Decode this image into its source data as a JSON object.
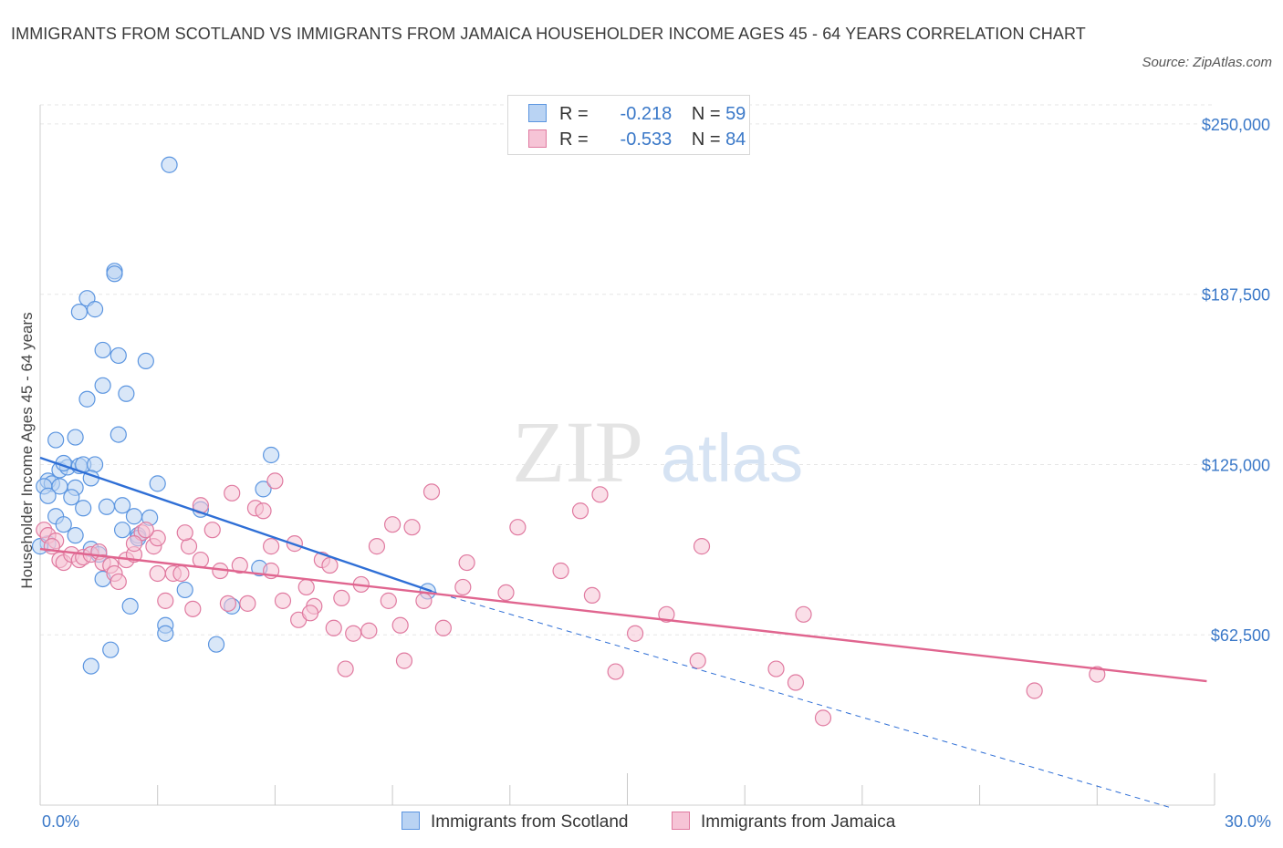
{
  "title": "IMMIGRANTS FROM SCOTLAND VS IMMIGRANTS FROM JAMAICA HOUSEHOLDER INCOME AGES 45 - 64 YEARS CORRELATION CHART",
  "source": "Source: ZipAtlas.com",
  "watermark": {
    "zip": "ZIP",
    "atlas": "atlas"
  },
  "legend": {
    "rows": [
      {
        "r_label": "R =",
        "r_value": "-0.218",
        "n_label": "N =",
        "n_value": "59",
        "color": "#a9c8f0"
      },
      {
        "r_label": "R =",
        "r_value": "-0.533",
        "n_label": "N =",
        "n_value": "84",
        "color": "#f5b8cc"
      }
    ]
  },
  "bottom_legend": [
    "Immigrants from Scotland",
    "Immigrants from Jamaica"
  ],
  "chart_data": {
    "type": "scatter",
    "title": "IMMIGRANTS FROM SCOTLAND VS IMMIGRANTS FROM JAMAICA HOUSEHOLDER INCOME AGES 45 - 64 YEARS CORRELATION CHART",
    "xlabel": "",
    "ylabel": "Householder Income Ages 45 - 64 years",
    "xlim": [
      0,
      30
    ],
    "ylim": [
      0,
      257000
    ],
    "x_tick_labels": [
      "0.0%",
      "30.0%"
    ],
    "y_ticks": [
      62500,
      125000,
      187500,
      250000
    ],
    "y_tick_labels": [
      "$62,500",
      "$125,000",
      "$187,500",
      "$250,000"
    ],
    "grid": true,
    "series": [
      {
        "name": "Immigrants from Scotland",
        "color": "#5b95e0",
        "fill": "#b9d3f3",
        "trend_color": "#2f6fd6",
        "trend": {
          "x": [
            0,
            10
          ],
          "y": [
            127500,
            78500
          ]
        },
        "trend_extension": {
          "x": [
            10,
            28.9
          ],
          "y": [
            78500,
            -1000
          ]
        },
        "points": [
          [
            3.3,
            235000
          ],
          [
            1.9,
            196000
          ],
          [
            1.9,
            195000
          ],
          [
            1.2,
            186000
          ],
          [
            1.0,
            181000
          ],
          [
            1.4,
            182000
          ],
          [
            1.6,
            167000
          ],
          [
            2.0,
            165000
          ],
          [
            2.7,
            163000
          ],
          [
            1.6,
            154000
          ],
          [
            2.2,
            151000
          ],
          [
            1.2,
            149000
          ],
          [
            0.4,
            134000
          ],
          [
            0.9,
            135000
          ],
          [
            2.0,
            136000
          ],
          [
            5.9,
            128500
          ],
          [
            0.5,
            123000
          ],
          [
            0.7,
            124000
          ],
          [
            1.0,
            124500
          ],
          [
            1.1,
            125000
          ],
          [
            0.6,
            125500
          ],
          [
            1.4,
            125000
          ],
          [
            0.2,
            119000
          ],
          [
            0.3,
            118000
          ],
          [
            0.1,
            117000
          ],
          [
            0.5,
            117000
          ],
          [
            0.9,
            116500
          ],
          [
            3.0,
            118000
          ],
          [
            5.7,
            116000
          ],
          [
            0.8,
            113000
          ],
          [
            0.2,
            113500
          ],
          [
            0.4,
            106000
          ],
          [
            1.1,
            109000
          ],
          [
            1.7,
            109500
          ],
          [
            2.1,
            110000
          ],
          [
            2.4,
            106000
          ],
          [
            2.8,
            105500
          ],
          [
            4.1,
            108500
          ],
          [
            0.6,
            103000
          ],
          [
            0.9,
            99000
          ],
          [
            2.1,
            101000
          ],
          [
            2.5,
            99000
          ],
          [
            2.5,
            98000
          ],
          [
            0.2,
            96000
          ],
          [
            0.0,
            95000
          ],
          [
            1.3,
            94000
          ],
          [
            1.5,
            92000
          ],
          [
            1.6,
            83000
          ],
          [
            3.7,
            79000
          ],
          [
            2.3,
            73000
          ],
          [
            4.9,
            73000
          ],
          [
            5.6,
            87000
          ],
          [
            3.2,
            66000
          ],
          [
            3.2,
            63000
          ],
          [
            4.5,
            59000
          ],
          [
            1.8,
            57000
          ],
          [
            1.3,
            51000
          ],
          [
            9.9,
            78500
          ],
          [
            1.3,
            120000
          ]
        ]
      },
      {
        "name": "Immigrants from Jamaica",
        "color": "#e07aa0",
        "fill": "#f6c4d6",
        "trend_color": "#e0658f",
        "trend": {
          "x": [
            0,
            29.8
          ],
          "y": [
            94000,
            45500
          ]
        },
        "points": [
          [
            0.1,
            101000
          ],
          [
            0.2,
            99000
          ],
          [
            0.4,
            97000
          ],
          [
            0.3,
            95000
          ],
          [
            0.5,
            90000
          ],
          [
            0.6,
            89000
          ],
          [
            0.8,
            92000
          ],
          [
            1.0,
            90000
          ],
          [
            1.1,
            91000
          ],
          [
            1.3,
            92000
          ],
          [
            1.5,
            93000
          ],
          [
            1.6,
            89000
          ],
          [
            1.8,
            88000
          ],
          [
            1.9,
            85000
          ],
          [
            2.0,
            82000
          ],
          [
            2.2,
            90000
          ],
          [
            2.4,
            92000
          ],
          [
            2.6,
            100000
          ],
          [
            2.4,
            96000
          ],
          [
            2.9,
            95000
          ],
          [
            3.0,
            98000
          ],
          [
            3.0,
            85000
          ],
          [
            3.4,
            85000
          ],
          [
            3.8,
            95000
          ],
          [
            3.2,
            75000
          ],
          [
            3.6,
            85000
          ],
          [
            3.9,
            72000
          ],
          [
            4.1,
            90000
          ],
          [
            4.4,
            101000
          ],
          [
            4.6,
            86000
          ],
          [
            4.8,
            74000
          ],
          [
            5.1,
            88000
          ],
          [
            5.3,
            74000
          ],
          [
            5.5,
            109000
          ],
          [
            5.7,
            108000
          ],
          [
            5.9,
            95000
          ],
          [
            6.0,
            119000
          ],
          [
            6.2,
            75000
          ],
          [
            6.5,
            96000
          ],
          [
            6.6,
            68000
          ],
          [
            6.8,
            80000
          ],
          [
            7.0,
            73000
          ],
          [
            7.2,
            90000
          ],
          [
            7.4,
            88000
          ],
          [
            7.5,
            65000
          ],
          [
            7.7,
            76000
          ],
          [
            7.8,
            50000
          ],
          [
            8.0,
            63000
          ],
          [
            8.2,
            81000
          ],
          [
            8.4,
            64000
          ],
          [
            8.6,
            95000
          ],
          [
            8.9,
            75000
          ],
          [
            9.0,
            103000
          ],
          [
            9.2,
            66000
          ],
          [
            9.3,
            53000
          ],
          [
            9.5,
            102000
          ],
          [
            9.8,
            75000
          ],
          [
            10.0,
            115000
          ],
          [
            10.3,
            65000
          ],
          [
            10.8,
            80000
          ],
          [
            10.9,
            89000
          ],
          [
            11.9,
            78000
          ],
          [
            12.2,
            102000
          ],
          [
            13.3,
            86000
          ],
          [
            13.8,
            108000
          ],
          [
            14.1,
            77000
          ],
          [
            14.3,
            114000
          ],
          [
            14.7,
            49000
          ],
          [
            15.2,
            63000
          ],
          [
            16.0,
            70000
          ],
          [
            16.8,
            53000
          ],
          [
            16.9,
            95000
          ],
          [
            18.8,
            50000
          ],
          [
            19.3,
            45000
          ],
          [
            19.5,
            70000
          ],
          [
            20.0,
            32000
          ],
          [
            25.4,
            42000
          ],
          [
            27.0,
            48000
          ],
          [
            4.9,
            114500
          ],
          [
            4.1,
            110000
          ],
          [
            3.7,
            100000
          ],
          [
            2.7,
            101000
          ],
          [
            5.9,
            86000
          ],
          [
            6.9,
            70500
          ]
        ]
      }
    ]
  }
}
